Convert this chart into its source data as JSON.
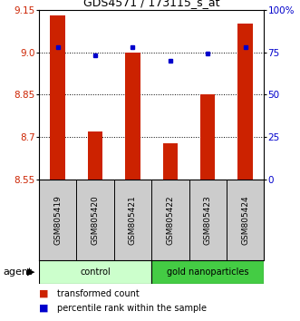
{
  "title": "GDS4571 / 173115_s_at",
  "samples": [
    "GSM805419",
    "GSM805420",
    "GSM805421",
    "GSM805422",
    "GSM805423",
    "GSM805424"
  ],
  "bar_values": [
    9.13,
    8.72,
    9.0,
    8.68,
    8.85,
    9.1
  ],
  "percentile_values": [
    78,
    73,
    78,
    70,
    74,
    78
  ],
  "ylim": [
    8.55,
    9.15
  ],
  "yticks": [
    8.55,
    8.7,
    8.85,
    9.0,
    9.15
  ],
  "y2ticks": [
    0,
    25,
    50,
    75,
    100
  ],
  "y2lim": [
    0,
    100
  ],
  "bar_color": "#cc2200",
  "dot_color": "#0000cc",
  "group1_color": "#ccffcc",
  "group2_color": "#44cc44",
  "group1_label": "control",
  "group2_label": "gold nanoparticles",
  "group1_indices": [
    0,
    1,
    2
  ],
  "group2_indices": [
    3,
    4,
    5
  ],
  "agent_label": "agent",
  "legend_bar_label": "transformed count",
  "legend_dot_label": "percentile rank within the sample",
  "sample_bg_color": "#cccccc",
  "bar_width": 0.4,
  "title_fontsize": 9,
  "tick_fontsize": 7.5,
  "label_fontsize": 6.5,
  "agent_fontsize": 8,
  "legend_fontsize": 7
}
